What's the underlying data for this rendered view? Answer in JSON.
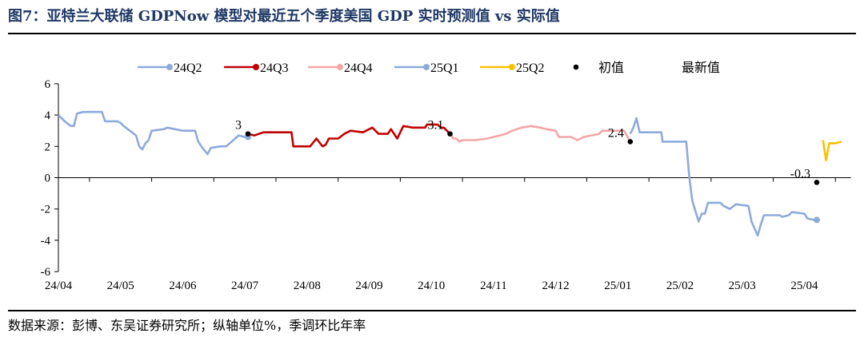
{
  "figure": {
    "title": "图7：亚特兰大联储 GDPNow 模型对最近五个季度美国 GDP 实时预测值 vs 实际值",
    "source": "数据来源：彭博、东吴证券研究所；纵轴单位%，季调环比年率"
  },
  "chart_data": {
    "type": "line",
    "ylim": [
      -6,
      6
    ],
    "yticks": [
      "-6",
      "-4",
      "-2",
      "0",
      "2",
      "4",
      "6"
    ],
    "xtick_labels": [
      "24/04",
      "24/05",
      "24/06",
      "24/07",
      "24/08",
      "24/09",
      "24/10",
      "24/11",
      "24/12",
      "25/01",
      "25/02",
      "25/03",
      "25/04"
    ],
    "legend": {
      "position": "top",
      "entries": [
        "24Q2",
        "24Q3",
        "24Q4",
        "25Q1",
        "25Q2",
        "初值",
        "最新值"
      ]
    },
    "series": [
      {
        "name": "24Q2",
        "color": "#8eaadb",
        "marker_color": "#8eaadb",
        "points": [
          [
            0,
            4.0
          ],
          [
            0.1,
            3.6
          ],
          [
            0.2,
            3.3
          ],
          [
            0.25,
            3.3
          ],
          [
            0.3,
            4.1
          ],
          [
            0.4,
            4.2
          ],
          [
            0.7,
            4.2
          ],
          [
            0.75,
            3.6
          ],
          [
            0.95,
            3.6
          ],
          [
            1.0,
            3.5
          ],
          [
            1.05,
            3.3
          ],
          [
            1.25,
            2.7
          ],
          [
            1.3,
            2.0
          ],
          [
            1.35,
            1.8
          ],
          [
            1.4,
            2.2
          ],
          [
            1.45,
            2.4
          ],
          [
            1.5,
            3.0
          ],
          [
            1.7,
            3.1
          ],
          [
            1.75,
            3.2
          ],
          [
            2.0,
            3.0
          ],
          [
            2.2,
            3.0
          ],
          [
            2.25,
            2.3
          ],
          [
            2.3,
            2.0
          ],
          [
            2.4,
            1.5
          ],
          [
            2.45,
            1.9
          ],
          [
            2.6,
            2.0
          ],
          [
            2.7,
            2.0
          ],
          [
            2.9,
            2.7
          ],
          [
            3.0,
            2.6
          ],
          [
            3.05,
            2.6
          ]
        ]
      },
      {
        "name": "24Q3",
        "color": "#c00000",
        "marker_color": "#c00000",
        "points": [
          [
            3.05,
            2.8
          ],
          [
            3.15,
            2.7
          ],
          [
            3.3,
            2.9
          ],
          [
            3.5,
            2.9
          ],
          [
            3.7,
            2.9
          ],
          [
            3.75,
            2.9
          ],
          [
            3.78,
            2.0
          ],
          [
            4.0,
            2.0
          ],
          [
            4.05,
            2.0
          ],
          [
            4.15,
            2.5
          ],
          [
            4.25,
            2.0
          ],
          [
            4.3,
            2.1
          ],
          [
            4.35,
            2.5
          ],
          [
            4.5,
            2.5
          ],
          [
            4.6,
            2.8
          ],
          [
            4.7,
            3.0
          ],
          [
            4.9,
            2.9
          ],
          [
            5.05,
            3.2
          ],
          [
            5.15,
            2.8
          ],
          [
            5.3,
            2.8
          ],
          [
            5.35,
            3.1
          ],
          [
            5.45,
            2.5
          ],
          [
            5.55,
            3.3
          ],
          [
            5.7,
            3.2
          ],
          [
            5.9,
            3.2
          ],
          [
            5.93,
            3.4
          ],
          [
            6.1,
            3.4
          ],
          [
            6.15,
            3.2
          ],
          [
            6.2,
            3.2
          ],
          [
            6.25,
            3.0
          ],
          [
            6.3,
            2.8
          ]
        ]
      },
      {
        "name": "24Q4",
        "color": "#f4a6a6",
        "marker_color": "#f4a6a6",
        "points": [
          [
            6.3,
            2.9
          ],
          [
            6.35,
            2.5
          ],
          [
            6.4,
            2.5
          ],
          [
            6.45,
            2.3
          ],
          [
            6.5,
            2.4
          ],
          [
            6.7,
            2.4
          ],
          [
            6.9,
            2.5
          ],
          [
            7.1,
            2.7
          ],
          [
            7.2,
            2.8
          ],
          [
            7.3,
            3.0
          ],
          [
            7.45,
            3.2
          ],
          [
            7.6,
            3.3
          ],
          [
            7.75,
            3.2
          ],
          [
            7.85,
            3.1
          ],
          [
            8.0,
            3.0
          ],
          [
            8.05,
            2.6
          ],
          [
            8.25,
            2.6
          ],
          [
            8.35,
            2.4
          ],
          [
            8.45,
            2.6
          ],
          [
            8.7,
            2.8
          ],
          [
            8.75,
            3.0
          ],
          [
            9.0,
            3.0
          ],
          [
            9.1,
            3.0
          ],
          [
            9.2,
            2.3
          ]
        ]
      },
      {
        "name": "25Q1",
        "color": "#8eaadb",
        "marker_color": "#8eaadb",
        "points": [
          [
            9.2,
            2.8
          ],
          [
            9.25,
            3.2
          ],
          [
            9.3,
            3.8
          ],
          [
            9.35,
            2.9
          ],
          [
            9.5,
            2.9
          ],
          [
            9.7,
            2.9
          ],
          [
            9.72,
            2.3
          ],
          [
            10.0,
            2.3
          ],
          [
            10.1,
            2.3
          ],
          [
            10.15,
            0.0
          ],
          [
            10.2,
            -1.5
          ],
          [
            10.3,
            -2.8
          ],
          [
            10.35,
            -2.3
          ],
          [
            10.4,
            -2.3
          ],
          [
            10.45,
            -1.6
          ],
          [
            10.65,
            -1.6
          ],
          [
            10.7,
            -1.8
          ],
          [
            10.8,
            -2.0
          ],
          [
            10.9,
            -1.7
          ],
          [
            11.1,
            -1.8
          ],
          [
            11.15,
            -2.8
          ],
          [
            11.25,
            -3.7
          ],
          [
            11.3,
            -3.0
          ],
          [
            11.35,
            -2.4
          ],
          [
            11.6,
            -2.4
          ],
          [
            11.65,
            -2.5
          ],
          [
            11.75,
            -2.4
          ],
          [
            11.8,
            -2.2
          ],
          [
            12.0,
            -2.3
          ],
          [
            12.05,
            -2.6
          ],
          [
            12.15,
            -2.7
          ],
          [
            12.2,
            -2.7
          ]
        ]
      },
      {
        "name": "25Q2",
        "color": "#ffc000",
        "marker_color": "#ffc000",
        "points": [
          [
            12.3,
            2.4
          ],
          [
            12.35,
            1.1
          ],
          [
            12.4,
            2.2
          ],
          [
            12.5,
            2.2
          ],
          [
            12.6,
            2.3
          ]
        ]
      }
    ],
    "markers": [
      {
        "label": "3",
        "x": 3.05,
        "y": 2.8,
        "label_side": "left"
      },
      {
        "label": "3.1",
        "x": 6.3,
        "y": 2.8,
        "label_side": "left"
      },
      {
        "label": "2.4",
        "x": 9.2,
        "y": 2.3,
        "label_side": "left"
      },
      {
        "label": "-0.3",
        "x": 12.2,
        "y": -0.3,
        "label_side": "left"
      }
    ],
    "marker_color": "#000000"
  }
}
